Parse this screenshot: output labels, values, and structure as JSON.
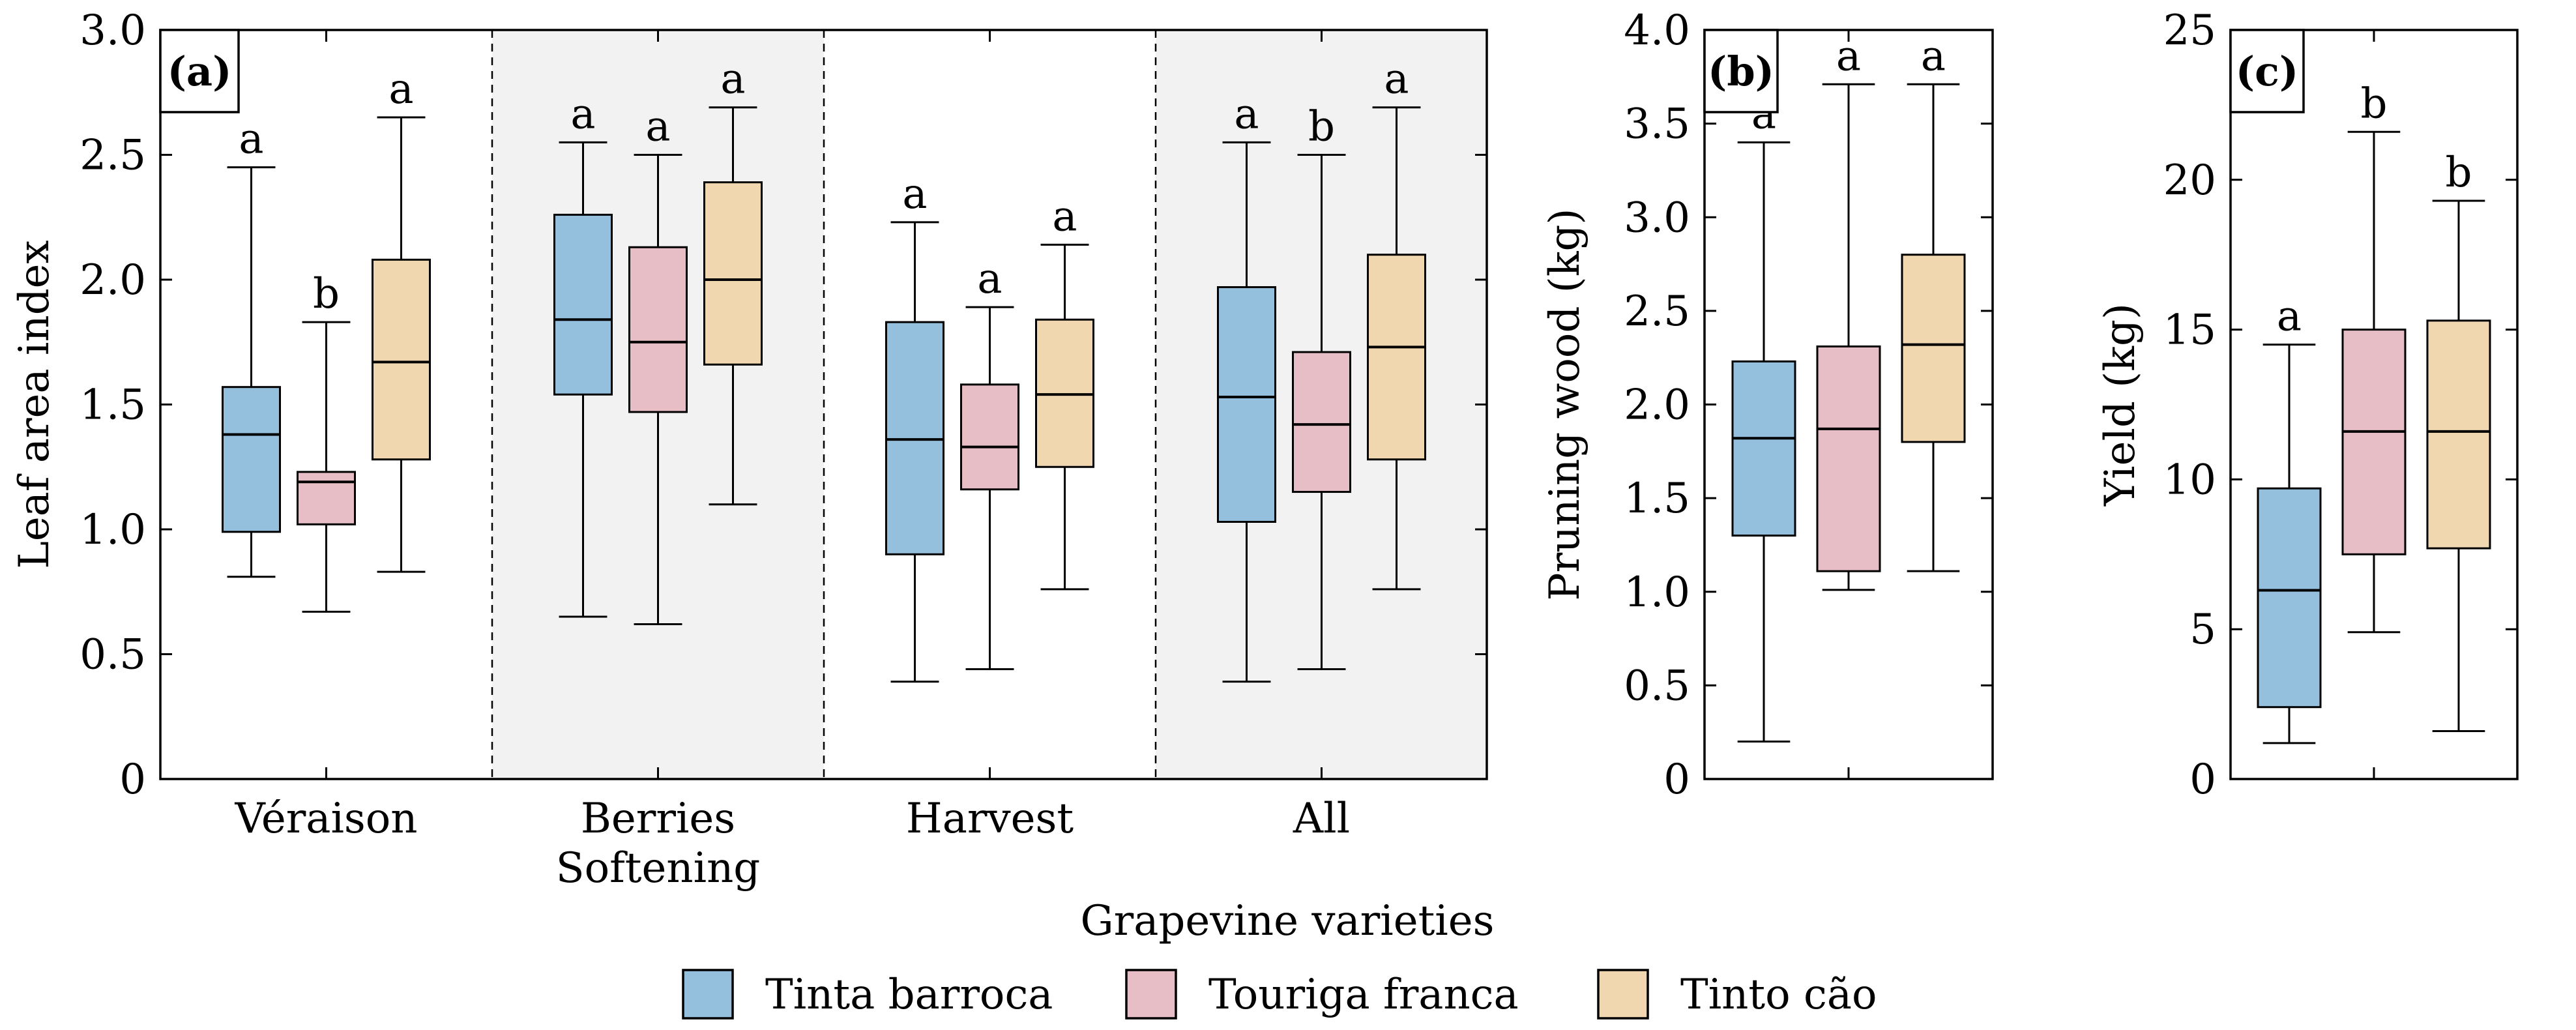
{
  "legend": {
    "title": "Grapevine varieties",
    "items": [
      {
        "name": "Tinta barroca",
        "color": "#94c0de"
      },
      {
        "name": "Touriga franca",
        "color": "#e7bdc6"
      },
      {
        "name": "Tinto cão",
        "color": "#f0d7b0"
      }
    ]
  },
  "chart_data": [
    {
      "type": "box",
      "panel_label": "(a)",
      "ylabel": "Leaf area index",
      "ylim": [
        0,
        3.0
      ],
      "yticks": [
        0,
        0.5,
        1.0,
        1.5,
        2.0,
        2.5,
        3.0
      ],
      "ytick_labels": [
        "0",
        "0.5",
        "1.0",
        "1.5",
        "2.0",
        "2.5",
        "3.0"
      ],
      "shaded_groups": [
        1,
        3
      ],
      "categories": [
        {
          "label": [
            "Véraison"
          ],
          "series": [
            {
              "min": 0.81,
              "q1": 0.99,
              "median": 1.38,
              "q3": 1.57,
              "max": 2.45,
              "letter": "a"
            },
            {
              "min": 0.67,
              "q1": 1.02,
              "median": 1.19,
              "q3": 1.23,
              "max": 1.83,
              "letter": "b"
            },
            {
              "min": 0.83,
              "q1": 1.28,
              "median": 1.67,
              "q3": 2.08,
              "max": 2.65,
              "letter": "a"
            }
          ]
        },
        {
          "label": [
            "Berries",
            "Softening"
          ],
          "series": [
            {
              "min": 0.65,
              "q1": 1.54,
              "median": 1.84,
              "q3": 2.26,
              "max": 2.55,
              "letter": "a"
            },
            {
              "min": 0.62,
              "q1": 1.47,
              "median": 1.75,
              "q3": 2.13,
              "max": 2.5,
              "letter": "a"
            },
            {
              "min": 1.1,
              "q1": 1.66,
              "median": 2.0,
              "q3": 2.39,
              "max": 2.69,
              "letter": "a"
            }
          ]
        },
        {
          "label": [
            "Harvest"
          ],
          "series": [
            {
              "min": 0.39,
              "q1": 0.9,
              "median": 1.36,
              "q3": 1.83,
              "max": 2.23,
              "letter": "a"
            },
            {
              "min": 0.44,
              "q1": 1.16,
              "median": 1.33,
              "q3": 1.58,
              "max": 1.89,
              "letter": "a"
            },
            {
              "min": 0.76,
              "q1": 1.25,
              "median": 1.54,
              "q3": 1.84,
              "max": 2.14,
              "letter": "a"
            }
          ]
        },
        {
          "label": [
            "All"
          ],
          "series": [
            {
              "min": 0.39,
              "q1": 1.03,
              "median": 1.53,
              "q3": 1.97,
              "max": 2.55,
              "letter": "a"
            },
            {
              "min": 0.44,
              "q1": 1.15,
              "median": 1.42,
              "q3": 1.71,
              "max": 2.5,
              "letter": "b"
            },
            {
              "min": 0.76,
              "q1": 1.28,
              "median": 1.73,
              "q3": 2.1,
              "max": 2.69,
              "letter": "a"
            }
          ]
        }
      ]
    },
    {
      "type": "box",
      "panel_label": "(b)",
      "ylabel": "Pruning wood (kg)",
      "ylim": [
        0,
        4.0
      ],
      "yticks": [
        0,
        0.5,
        1.0,
        1.5,
        2.0,
        2.5,
        3.0,
        3.5,
        4.0
      ],
      "ytick_labels": [
        "0",
        "0.5",
        "1.0",
        "1.5",
        "2.0",
        "2.5",
        "3.0",
        "3.5",
        "4.0"
      ],
      "categories": [
        {
          "label": [],
          "series": [
            {
              "min": 0.2,
              "q1": 1.3,
              "median": 1.82,
              "q3": 2.23,
              "max": 3.4,
              "letter": "a"
            },
            {
              "min": 1.01,
              "q1": 1.11,
              "median": 1.87,
              "q3": 2.31,
              "max": 3.71,
              "letter": "a"
            },
            {
              "min": 1.11,
              "q1": 1.8,
              "median": 2.32,
              "q3": 2.8,
              "max": 3.71,
              "letter": "a"
            }
          ]
        }
      ]
    },
    {
      "type": "box",
      "panel_label": "(c)",
      "ylabel": "Yield (kg)",
      "ylim": [
        0,
        25
      ],
      "yticks": [
        0,
        5,
        10,
        15,
        20,
        25
      ],
      "ytick_labels": [
        "0",
        "5",
        "10",
        "15",
        "20",
        "25"
      ],
      "categories": [
        {
          "label": [],
          "series": [
            {
              "min": 1.2,
              "q1": 2.4,
              "median": 6.3,
              "q3": 9.7,
              "max": 14.5,
              "letter": "a"
            },
            {
              "min": 4.9,
              "q1": 7.5,
              "median": 11.6,
              "q3": 15.0,
              "max": 21.6,
              "letter": "b"
            },
            {
              "min": 1.6,
              "q1": 7.7,
              "median": 11.6,
              "q3": 15.3,
              "max": 19.3,
              "letter": "b"
            }
          ]
        }
      ]
    }
  ]
}
